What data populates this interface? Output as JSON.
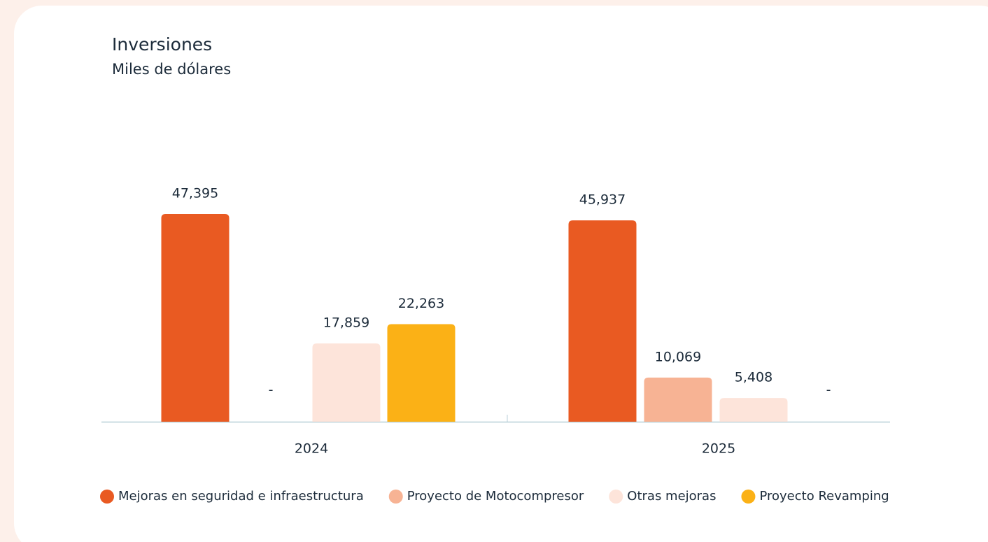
{
  "chart_data": {
    "type": "bar",
    "title": "Inversiones",
    "subtitle": "Miles de dólares",
    "categories": [
      "2024",
      "2025"
    ],
    "series": [
      {
        "name": "Mejoras en seguridad e infraestructura",
        "color": "#e95a22",
        "values": [
          47395,
          45937
        ],
        "value_labels": [
          "47,395",
          "45,937"
        ]
      },
      {
        "name": "Proyecto de Motocompresor",
        "color": "#f7b394",
        "values": [
          null,
          10069
        ],
        "value_labels": [
          "-",
          "10,069"
        ]
      },
      {
        "name": "Otras mejoras",
        "color": "#fde4da",
        "values": [
          17859,
          5408
        ],
        "value_labels": [
          "17,859",
          "5,408"
        ]
      },
      {
        "name": "Proyecto Revamping",
        "color": "#fbb116",
        "values": [
          22263,
          null
        ],
        "value_labels": [
          "22,263",
          "-"
        ]
      }
    ]
  }
}
